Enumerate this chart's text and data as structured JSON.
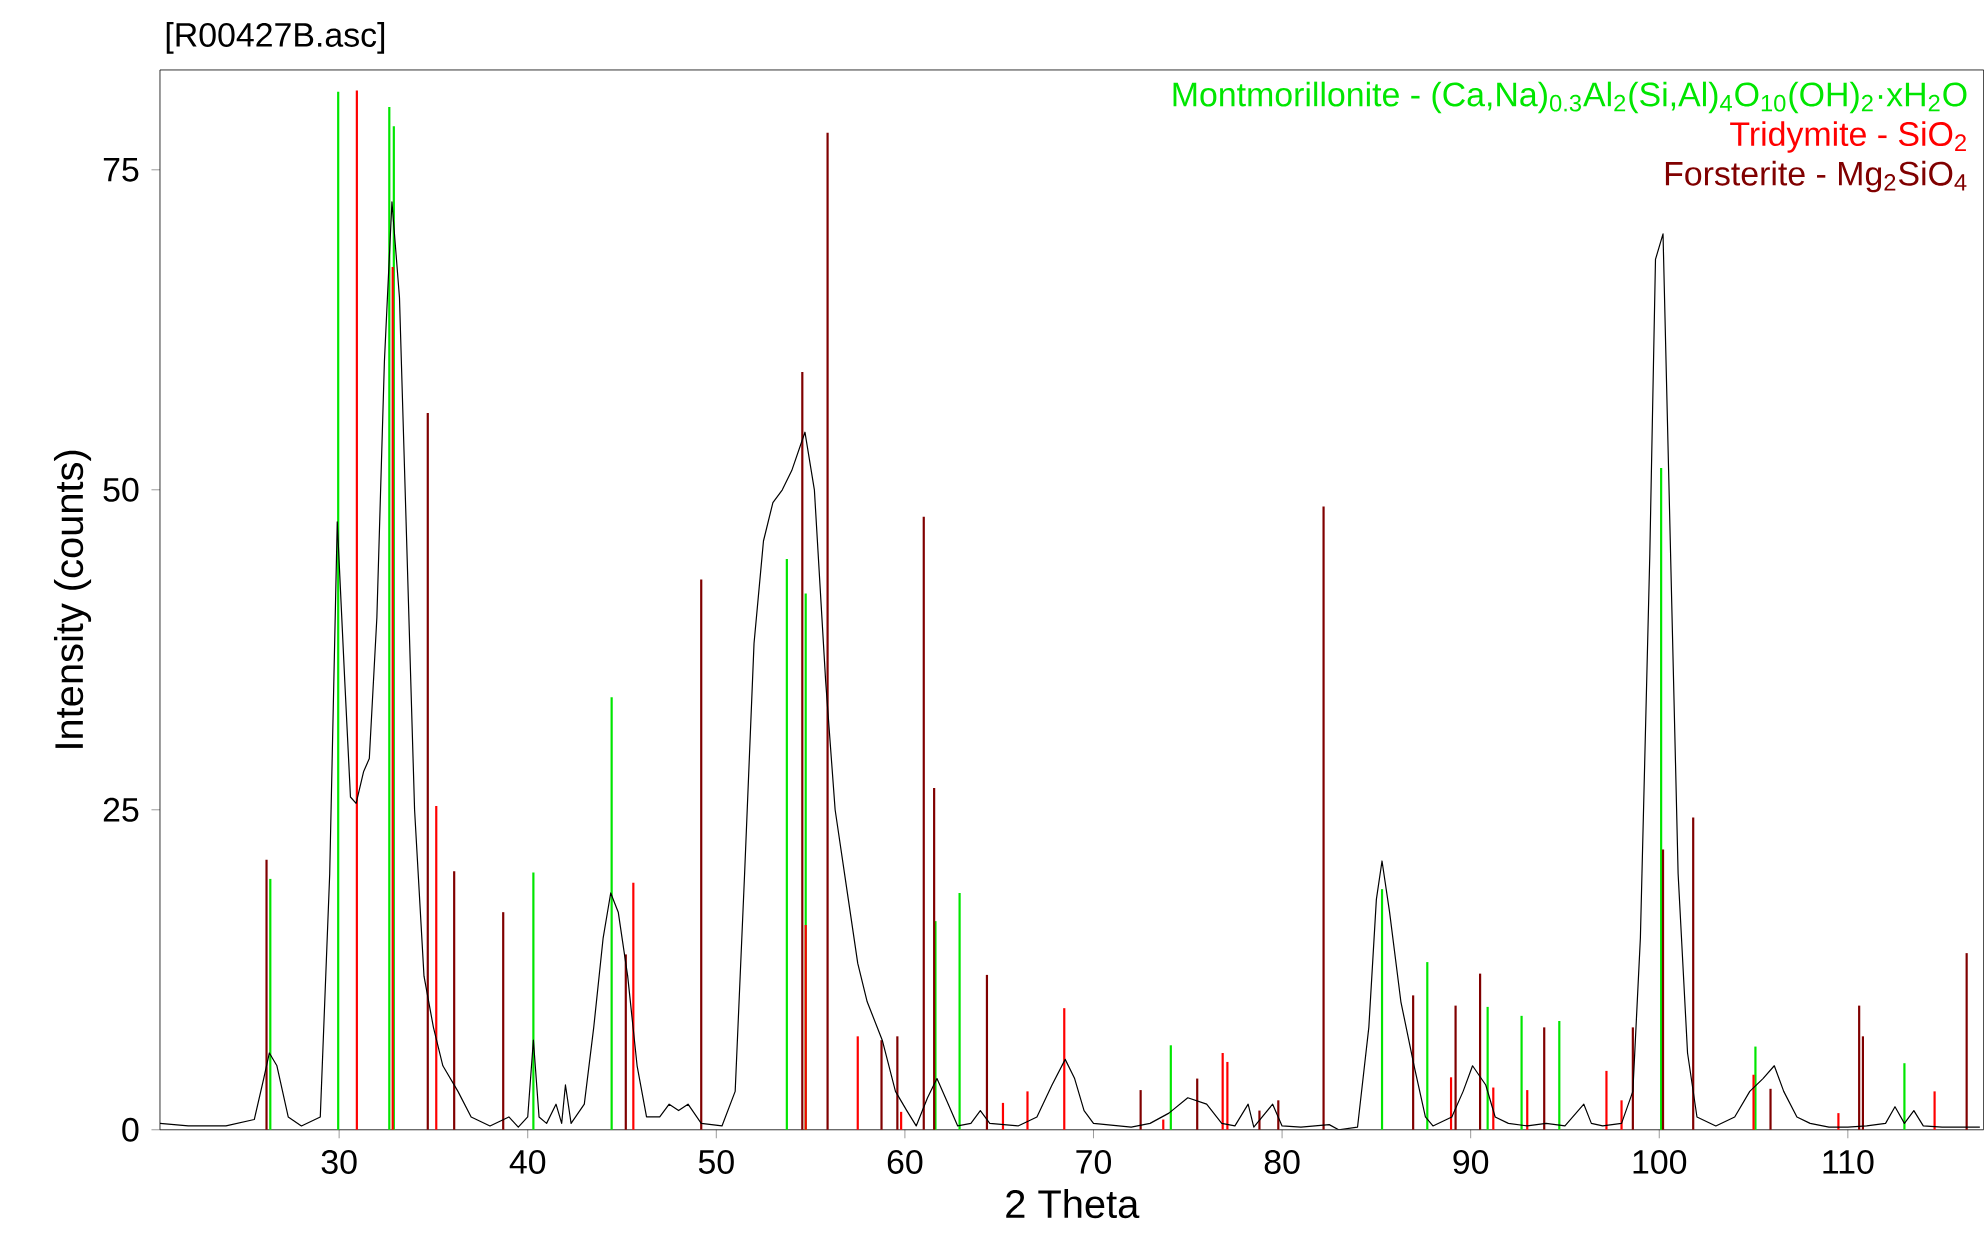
{
  "chart_data": {
    "type": "line",
    "title": "[R00427B.asc]",
    "xlabel": "2 Theta",
    "ylabel": "Intensity (counts)",
    "xlim": [
      20.5,
      117.2
    ],
    "ylim": [
      0,
      82.8
    ],
    "xticks": [
      30,
      40,
      50,
      60,
      70,
      80,
      90,
      100,
      110
    ],
    "yticks": [
      0,
      25,
      50,
      75
    ],
    "grid": false,
    "legend": "top right",
    "series": [
      {
        "color": "#000000",
        "x": [
          20.5,
          22,
          24,
          25.5,
          26,
          26.3,
          26.7,
          27.3,
          28,
          29,
          29.5,
          29.9,
          30.3,
          30.6,
          30.9,
          31.3,
          31.6,
          32,
          32.4,
          32.8,
          33.2,
          33.6,
          34,
          34.5,
          35,
          35.5,
          36.3,
          37,
          38,
          39,
          39.5,
          40.0,
          40.3,
          40.6,
          41,
          41.5,
          41.8,
          42.0,
          42.3,
          43,
          43.5,
          44,
          44.4,
          44.8,
          45.3,
          45.8,
          46.3,
          47,
          47.5,
          48,
          48.5,
          49.2,
          50.3,
          51,
          51.5,
          52,
          52.5,
          53,
          53.5,
          54,
          54.7,
          55.2,
          55.8,
          56.3,
          57,
          57.5,
          58,
          58.8,
          59.5,
          60.1,
          60.6,
          61.2,
          61.7,
          62.3,
          62.8,
          63.5,
          64,
          64.5,
          66,
          67,
          67.8,
          68.5,
          69,
          69.5,
          70,
          72,
          73,
          74,
          75,
          76,
          76.8,
          77.5,
          78.2,
          78.5,
          79.5,
          80,
          81,
          82.5,
          83,
          84,
          84.6,
          85.0,
          85.3,
          85.7,
          86.3,
          87,
          87.6,
          88,
          89,
          89.6,
          90.1,
          90.8,
          91.3,
          92,
          93,
          94,
          95,
          96,
          96.4,
          97,
          98,
          98.6,
          99,
          99.5,
          99.8,
          100.2,
          100.6,
          101,
          101.5,
          102,
          103,
          104,
          104.8,
          105.5,
          106.1,
          106.6,
          107.3,
          108,
          109,
          110,
          111,
          112,
          112.5,
          113,
          113.5,
          114,
          115,
          117
        ],
        "values": [
          0.5,
          0.3,
          0.3,
          0.8,
          4,
          6,
          5,
          1,
          0.3,
          1,
          20,
          47.5,
          35,
          26,
          25.5,
          28,
          29,
          40,
          60,
          72.5,
          65,
          45,
          25,
          12,
          8,
          5,
          3,
          1,
          0.3,
          1,
          0.2,
          1,
          7,
          1,
          0.5,
          2,
          0.5,
          3.5,
          0.5,
          2,
          8,
          15,
          18.5,
          17,
          12,
          5,
          1,
          1,
          2,
          1.5,
          2,
          0.5,
          0.3,
          3,
          20,
          38,
          46,
          49,
          50,
          51.5,
          54.5,
          50,
          35,
          25,
          18,
          13,
          10,
          7,
          3,
          1.5,
          0.3,
          2.5,
          4,
          2,
          0.3,
          0.5,
          1.5,
          0.5,
          0.3,
          1,
          3.5,
          5.5,
          4,
          1.5,
          0.5,
          0.2,
          0.5,
          1.3,
          2.5,
          2,
          0.5,
          0.3,
          2,
          0.2,
          2,
          0.3,
          0.2,
          0.4,
          0,
          0.2,
          8,
          18,
          21,
          17,
          10,
          5,
          1,
          0.3,
          1,
          3,
          5,
          3.5,
          1,
          0.5,
          0.3,
          0.5,
          0.3,
          2,
          0.5,
          0.3,
          0.5,
          3,
          15,
          45,
          68,
          70,
          45,
          20,
          6,
          1,
          0.3,
          1,
          3,
          4,
          5,
          3,
          1,
          0.5,
          0.2,
          0.2,
          0.3,
          0.5,
          1.8,
          0.5,
          1.5,
          0.3,
          0.2,
          0.2
        ]
      },
      {
        "type": "bar",
        "name": "Montmorillonite - (Ca,Na)$_{0.3}$Al$_{2}$(Si,Al)$_{4}$O$_{10}$(OH)$_{2}$·xH$_{2}$O",
        "color": "#00e600",
        "x": [
          26.35,
          29.95,
          32.66,
          32.9,
          40.3,
          44.45,
          53.74,
          54.74,
          61.62,
          62.9,
          74.1,
          85.3,
          87.7,
          90.9,
          92.7,
          94.7,
          100.1,
          105.1,
          113.0
        ],
        "values": [
          19.6,
          81.1,
          79.9,
          78.4,
          20.1,
          33.8,
          44.6,
          41.9,
          16.3,
          18.5,
          6.6,
          18.8,
          13.1,
          9.6,
          8.9,
          8.5,
          51.7,
          6.5,
          5.2
        ]
      },
      {
        "type": "bar",
        "name": "Tridymite - SiO$_{2}$",
        "color": "#ff0000",
        "x": [
          30.94,
          32.84,
          35.15,
          45.6,
          54.74,
          57.5,
          59.8,
          65.2,
          66.5,
          68.45,
          73.7,
          76.85,
          77.1,
          88.96,
          91.2,
          93.0,
          97.2,
          98.0,
          105.0,
          109.5,
          114.6
        ],
        "values": [
          81.2,
          67.4,
          25.3,
          19.3,
          16.0,
          7.3,
          1.4,
          2.1,
          3.0,
          9.5,
          0.8,
          6.0,
          5.3,
          4.1,
          3.3,
          3.1,
          4.6,
          2.3,
          4.3,
          1.3,
          3.0
        ]
      },
      {
        "type": "bar",
        "name": "Forsterite - Mg$_{2}$SiO$_{4}$",
        "color": "#800000",
        "x": [
          26.15,
          34.7,
          36.1,
          38.7,
          45.2,
          49.2,
          54.56,
          55.9,
          58.76,
          59.6,
          61.0,
          61.55,
          64.35,
          72.5,
          75.5,
          78.8,
          79.8,
          82.2,
          86.95,
          89.2,
          90.5,
          93.9,
          98.6,
          100.2,
          101.8,
          105.9,
          110.6,
          110.8,
          116.3
        ],
        "values": [
          21.1,
          56.0,
          20.2,
          17.0,
          13.7,
          43.0,
          59.2,
          77.9,
          7.0,
          7.3,
          47.9,
          26.7,
          12.1,
          3.1,
          4.0,
          1.5,
          2.3,
          48.7,
          10.5,
          9.7,
          12.2,
          8.0,
          8.0,
          21.9,
          24.4,
          3.2,
          9.7,
          7.3,
          13.8
        ]
      }
    ]
  }
}
